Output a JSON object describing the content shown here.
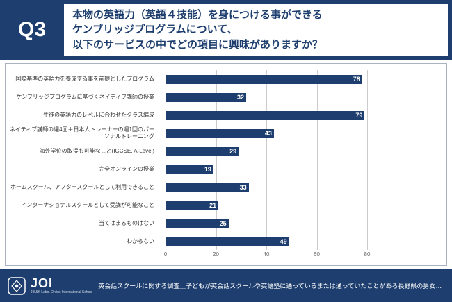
{
  "header": {
    "badge": "Q3",
    "question_lines": [
      "本物の英語力（英語４技能）を身につける事ができる",
      "ケンブリッジプログラムについて、",
      "以下のサービスの中でどの項目に興味がありますか？"
    ]
  },
  "chart_data": {
    "type": "bar",
    "orientation": "horizontal",
    "title": "",
    "categories": [
      "国際基準の英語力を養成する事を前提としたプログラム",
      "ケンブリッジプログラムに基づくネイティブ講師の授業",
      "生徒の英語力のレベルに合わせたクラス編成",
      "ネイティブ講師の週4回＋日本人トレーナーの週1回のパーソナルトレーニング",
      "海外学位の取得も可能なこと(IGCSE, A-Level)",
      "完全オンラインの授業",
      "ホームスクール、アフタースクールとして利用できること",
      "インターナショナルスクールとして受講が可能なこと",
      "当てはまるものはない",
      "わからない"
    ],
    "values": [
      78,
      32,
      79,
      43,
      29,
      19,
      33,
      21,
      25,
      49
    ],
    "xlim": [
      0,
      80
    ],
    "xticks": [
      0,
      20,
      40,
      60,
      80
    ],
    "grid": true,
    "bar_color": "#1d3e6e"
  },
  "footer": {
    "logo_name": "JOI",
    "logo_sub": "JIS&K Labo. Online International School",
    "caption": "英会話スクールに関する調査＿子どもが英会話スクールや英語塾に通っているまたは通っていたことがある長野県の男女（n=221）"
  },
  "colors": {
    "navy": "#1d3e6e",
    "grid_line": "#cccccc",
    "label_text": "#333333",
    "tick_text": "#666666"
  }
}
